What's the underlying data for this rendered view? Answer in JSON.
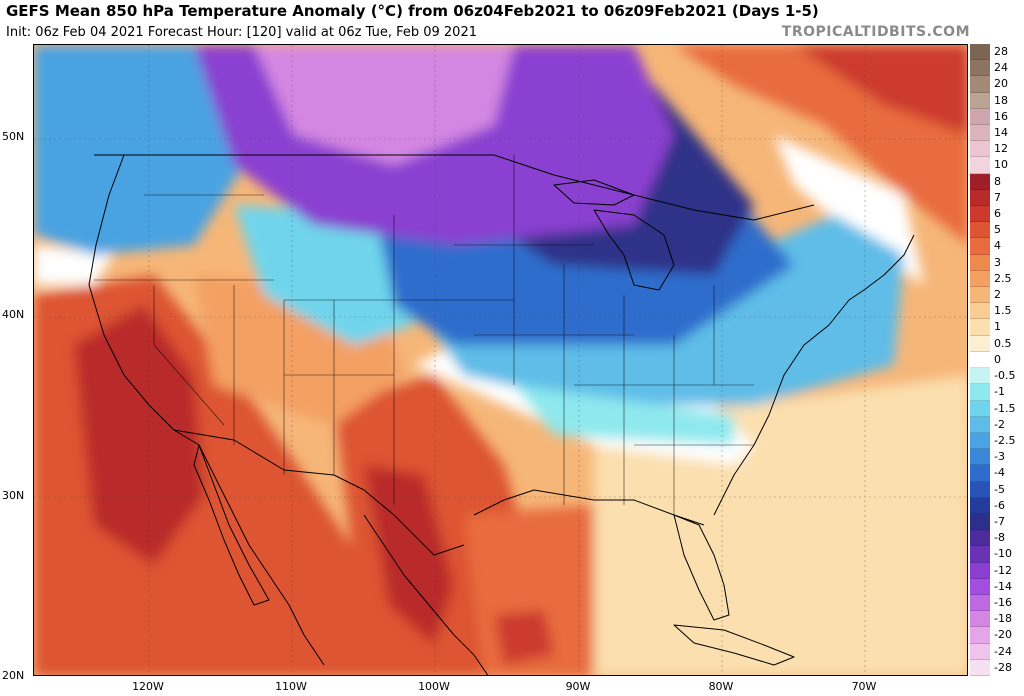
{
  "header": {
    "title": "GEFS Mean 850 hPa Temperature Anomaly (°C) from 06z04Feb2021 to 06z09Feb2021 (Days 1-5)",
    "subtitle": "Init: 06z Feb 04 2021   Forecast Hour: [120]   valid at 06z Tue, Feb 09 2021",
    "watermark": "TROPICALTIDBITS.COM"
  },
  "axes": {
    "latitude_labels": [
      "50N",
      "40N",
      "30N",
      "20N"
    ],
    "longitude_labels": [
      "120W",
      "110W",
      "100W",
      "90W",
      "80W",
      "70W"
    ]
  },
  "colorbar": {
    "unit": "°C",
    "entries": [
      {
        "label": "28",
        "color": "#7a6652"
      },
      {
        "label": "24",
        "color": "#8c7460"
      },
      {
        "label": "20",
        "color": "#a38a76"
      },
      {
        "label": "18",
        "color": "#bba493"
      },
      {
        "label": "16",
        "color": "#cfa6ad"
      },
      {
        "label": "14",
        "color": "#dcb4bd"
      },
      {
        "label": "12",
        "color": "#ebc6d1"
      },
      {
        "label": "10",
        "color": "#f2d4df"
      },
      {
        "label": "8",
        "color": "#9e1f27"
      },
      {
        "label": "7",
        "color": "#b92a2a"
      },
      {
        "label": "6",
        "color": "#cc3a2d"
      },
      {
        "label": "5",
        "color": "#dd5533"
      },
      {
        "label": "4",
        "color": "#e86c3e"
      },
      {
        "label": "3",
        "color": "#ef8a4f"
      },
      {
        "label": "2.5",
        "color": "#f4a063"
      },
      {
        "label": "2",
        "color": "#f6b678"
      },
      {
        "label": "1.5",
        "color": "#f9cd93"
      },
      {
        "label": "1",
        "color": "#fbdfae"
      },
      {
        "label": "0.5",
        "color": "#fdefd2"
      },
      {
        "label": "0",
        "color": "#ffffff"
      },
      {
        "label": "-0.5",
        "color": "#c6f4f2"
      },
      {
        "label": "-1",
        "color": "#8ee9ee"
      },
      {
        "label": "-1.5",
        "color": "#6fd5ec"
      },
      {
        "label": "-2",
        "color": "#5ebde8"
      },
      {
        "label": "-2.5",
        "color": "#4aa3e2"
      },
      {
        "label": "-3",
        "color": "#3b87d8"
      },
      {
        "label": "-4",
        "color": "#2f6dcc"
      },
      {
        "label": "-5",
        "color": "#2854b8"
      },
      {
        "label": "-6",
        "color": "#243d9c"
      },
      {
        "label": "-7",
        "color": "#2d3088"
      },
      {
        "label": "-8",
        "color": "#4a2c9a"
      },
      {
        "label": "-10",
        "color": "#6a33b5"
      },
      {
        "label": "-12",
        "color": "#8a3fd0"
      },
      {
        "label": "-14",
        "color": "#a24ede"
      },
      {
        "label": "-16",
        "color": "#bd6ae2"
      },
      {
        "label": "-18",
        "color": "#d487e2"
      },
      {
        "label": "-20",
        "color": "#e4a6e6"
      },
      {
        "label": "-24",
        "color": "#efc3ec"
      },
      {
        "label": "-28",
        "color": "#f7dff2"
      }
    ]
  }
}
